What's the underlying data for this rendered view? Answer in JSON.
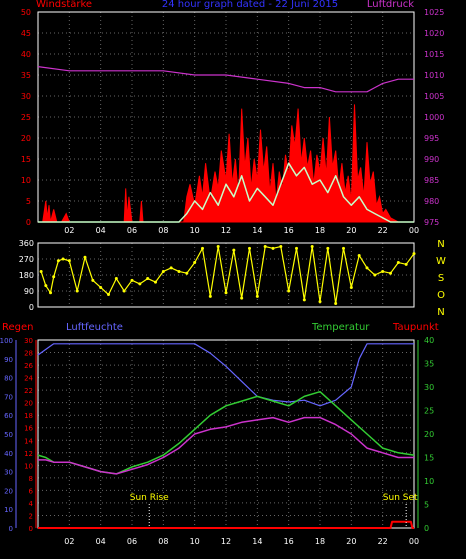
{
  "colors": {
    "background": "#000000",
    "frame": "#ffffff",
    "grid": "#666666",
    "wind_label": "#ff0000",
    "pressure": "#cc33cc",
    "title": "#3333ff",
    "wind_avg": "#c8ffc8",
    "direction": "#ffff00",
    "temperature": "#33cc33",
    "dewpoint": "#cc33cc",
    "humidity": "#6666ff",
    "rain": "#ff0000",
    "sun": "#ffffff"
  },
  "header": {
    "left": "Windstärke",
    "center": "24 hour graph dated - 22 Juni 2015",
    "right": "Luftdruck"
  },
  "direction_labels": [
    "N",
    "W",
    "S",
    "O",
    "N"
  ],
  "bottom_header": {
    "rain": "Regen",
    "humidity": "Luftfeuchte",
    "temperature": "Temperatur",
    "dewpoint": "Taupunkt"
  },
  "sun_labels": {
    "rise": "Sun Rise",
    "set": "Sun Set"
  },
  "chart_data": [
    {
      "type": "line",
      "title": "24 hour graph dated - 22 Juni 2015",
      "x_ticks": [
        "02",
        "04",
        "06",
        "08",
        "10",
        "12",
        "14",
        "16",
        "18",
        "20",
        "22",
        "00"
      ],
      "left_axis": {
        "label": "Windstärke",
        "ticks": [
          0,
          5,
          10,
          15,
          20,
          25,
          30,
          35,
          40,
          45,
          50
        ],
        "ylim": [
          0,
          50
        ]
      },
      "right_axis": {
        "label": "Luftdruck",
        "ticks": [
          975,
          980,
          985,
          990,
          995,
          1000,
          1005,
          1010,
          1015,
          1020,
          1025
        ],
        "ylim": [
          975,
          1025
        ]
      },
      "series": [
        {
          "name": "Windstärke gust",
          "axis": "left",
          "x": [
            0.3,
            0.5,
            0.6,
            0.7,
            0.8,
            1.0,
            1.2,
            1.5,
            1.8,
            2.0,
            3.0,
            5.5,
            5.6,
            5.7,
            5.8,
            6.0,
            6.5,
            6.6,
            6.7,
            7.0,
            7.5,
            8.0,
            8.5,
            9.0,
            9.3,
            9.5,
            9.7,
            10.0,
            10.3,
            10.5,
            10.7,
            11.0,
            11.3,
            11.5,
            11.7,
            12.0,
            12.2,
            12.4,
            12.6,
            12.8,
            13.0,
            13.2,
            13.4,
            13.6,
            13.8,
            14.0,
            14.2,
            14.4,
            14.6,
            14.8,
            15.0,
            15.2,
            15.4,
            15.6,
            15.8,
            16.0,
            16.2,
            16.4,
            16.6,
            16.8,
            17.0,
            17.2,
            17.4,
            17.6,
            17.8,
            18.0,
            18.2,
            18.4,
            18.6,
            18.8,
            19.0,
            19.2,
            19.4,
            19.6,
            19.8,
            20.0,
            20.2,
            20.4,
            20.6,
            20.8,
            21.0,
            21.2,
            21.4,
            21.6,
            21.8,
            22.0,
            22.2,
            22.5,
            23.0,
            24.0
          ],
          "values": [
            0,
            5,
            1,
            4,
            0,
            3,
            0,
            0,
            2,
            0,
            0,
            0,
            8,
            1,
            6,
            0,
            0,
            5,
            0,
            0,
            0,
            0,
            0,
            0,
            0,
            6,
            9,
            4,
            11,
            6,
            14,
            5,
            12,
            8,
            17,
            10,
            21,
            9,
            15,
            6,
            27,
            13,
            20,
            8,
            15,
            10,
            22,
            12,
            18,
            7,
            14,
            5,
            12,
            8,
            16,
            11,
            23,
            18,
            27,
            14,
            20,
            13,
            17,
            9,
            16,
            12,
            20,
            11,
            25,
            13,
            17,
            8,
            14,
            7,
            11,
            5,
            28,
            10,
            13,
            6,
            19,
            9,
            12,
            4,
            6,
            2,
            3,
            1,
            0,
            0
          ]
        },
        {
          "name": "Windstärke average",
          "axis": "left",
          "x": [
            0,
            8.5,
            9.0,
            9.5,
            10.0,
            10.5,
            11.0,
            11.5,
            12.0,
            12.5,
            13.0,
            13.5,
            14.0,
            14.5,
            15.0,
            15.5,
            16.0,
            16.5,
            17.0,
            17.5,
            18.0,
            18.5,
            19.0,
            19.5,
            20.0,
            20.5,
            21.0,
            21.5,
            22.0,
            22.5,
            23.0,
            24.0
          ],
          "values": [
            0,
            0,
            0,
            2,
            5,
            3,
            7,
            4,
            9,
            6,
            11,
            5,
            8,
            6,
            4,
            9,
            14,
            11,
            13,
            9,
            10,
            7,
            11,
            6,
            4,
            6,
            3,
            2,
            1,
            0,
            0,
            0
          ]
        },
        {
          "name": "Luftdruck",
          "axis": "right",
          "x": [
            0,
            2,
            4,
            6,
            8,
            10,
            12,
            14,
            16,
            17,
            18,
            19,
            20,
            21,
            21.5,
            22,
            23,
            24
          ],
          "values": [
            1012,
            1011,
            1011,
            1011,
            1011,
            1010,
            1010,
            1009,
            1008,
            1007,
            1007,
            1006,
            1006,
            1006,
            1007,
            1008,
            1009,
            1009
          ]
        }
      ]
    },
    {
      "type": "scatter",
      "x_ticks": [
        "02",
        "04",
        "06",
        "08",
        "10",
        "12",
        "14",
        "16",
        "18",
        "20",
        "22",
        "00"
      ],
      "left_axis": {
        "ticks": [
          0,
          90,
          180,
          270,
          360
        ],
        "ylim": [
          0,
          360
        ]
      },
      "right_axis": {
        "labels": [
          "N",
          "W",
          "S",
          "O",
          "N"
        ]
      },
      "series": [
        {
          "name": "Windrichtung",
          "x": [
            0.2,
            0.5,
            0.8,
            1.0,
            1.3,
            1.6,
            2.0,
            2.5,
            3.0,
            3.5,
            4.0,
            4.5,
            5.0,
            5.5,
            6.0,
            6.5,
            7.0,
            7.5,
            8.0,
            8.5,
            9.0,
            9.5,
            10.0,
            10.5,
            11.0,
            11.5,
            12.0,
            12.5,
            13.0,
            13.5,
            14.0,
            14.5,
            15.0,
            15.5,
            16.0,
            16.5,
            17.0,
            17.5,
            18.0,
            18.5,
            19.0,
            19.5,
            20.0,
            20.5,
            21.0,
            21.5,
            22.0,
            22.5,
            23.0,
            23.5,
            24.0
          ],
          "values": [
            200,
            120,
            80,
            170,
            260,
            270,
            260,
            90,
            280,
            150,
            110,
            70,
            160,
            90,
            150,
            130,
            160,
            140,
            200,
            220,
            200,
            190,
            250,
            330,
            60,
            340,
            80,
            320,
            50,
            330,
            60,
            340,
            330,
            340,
            90,
            330,
            40,
            340,
            30,
            330,
            20,
            330,
            110,
            290,
            220,
            180,
            200,
            190,
            250,
            240,
            300
          ]
        }
      ]
    },
    {
      "type": "line",
      "x_ticks": [
        "02",
        "04",
        "06",
        "08",
        "10",
        "12",
        "14",
        "16",
        "18",
        "20",
        "22",
        "00"
      ],
      "left_axis_rain": {
        "label": "Regen",
        "ticks": [
          0,
          2,
          4,
          6,
          8,
          10,
          12,
          14,
          16,
          18,
          20,
          22,
          24,
          26,
          28,
          30
        ],
        "ylim": [
          0,
          30
        ]
      },
      "left_axis_humidity": {
        "label": "Luftfeuchte",
        "ticks": [
          0,
          10,
          20,
          30,
          40,
          50,
          60,
          70,
          80,
          90,
          100
        ],
        "ylim": [
          0,
          100
        ]
      },
      "right_axis": {
        "ticks": [
          0,
          5,
          10,
          15,
          20,
          25,
          30,
          35,
          40
        ],
        "ylim": [
          0,
          40
        ]
      },
      "series": [
        {
          "name": "Luftfeuchte",
          "axis": "humidity",
          "x": [
            0,
            0.5,
            1.0,
            2.0,
            3.0,
            4.0,
            5.0,
            6.0,
            7.0,
            8.0,
            9.0,
            10.0,
            11.0,
            12.0,
            13.0,
            14.0,
            15.0,
            16.0,
            17.0,
            18.0,
            19.0,
            20.0,
            20.5,
            21.0,
            22.0,
            23.0,
            24.0
          ],
          "values": [
            92,
            95,
            98,
            98,
            98,
            98,
            98,
            98,
            98,
            98,
            98,
            98,
            93,
            86,
            78,
            70,
            68,
            67,
            68,
            65,
            68,
            75,
            90,
            98,
            98,
            98,
            98
          ]
        },
        {
          "name": "Temperatur",
          "axis": "temp",
          "x": [
            0,
            0.5,
            1.0,
            2.0,
            3.0,
            4.0,
            5.0,
            6.0,
            7.0,
            8.0,
            9.0,
            10.0,
            11.0,
            12.0,
            13.0,
            14.0,
            15.0,
            16.0,
            17.0,
            18.0,
            19.0,
            20.0,
            21.0,
            22.0,
            23.0,
            24.0
          ],
          "values": [
            15.5,
            15,
            14,
            14,
            13,
            12,
            11.5,
            13,
            14,
            15.5,
            18,
            21,
            24,
            26,
            27,
            28,
            27,
            26,
            28,
            29,
            26,
            23,
            20,
            17,
            16,
            15.5
          ]
        },
        {
          "name": "Taupunkt",
          "axis": "temp",
          "x": [
            0,
            0.5,
            1.0,
            2.0,
            3.0,
            4.0,
            5.0,
            6.0,
            7.0,
            8.0,
            9.0,
            10.0,
            11.0,
            12.0,
            13.0,
            14.0,
            15.0,
            16.0,
            17.0,
            18.0,
            19.0,
            20.0,
            21.0,
            22.0,
            23.0,
            24.0
          ],
          "values": [
            14.5,
            14.5,
            14,
            14,
            13,
            12,
            11.5,
            12.5,
            13.5,
            15,
            17,
            20,
            21,
            21.5,
            22.5,
            23,
            23.5,
            22.5,
            23.5,
            23.5,
            22,
            20,
            17,
            16,
            15,
            15
          ]
        },
        {
          "name": "Regen",
          "axis": "rain",
          "x": [
            0,
            22.5,
            22.6,
            23.8,
            23.9,
            24
          ],
          "values": [
            0,
            0,
            1,
            1,
            0,
            0
          ]
        }
      ],
      "sun_rise": 7.1,
      "sun_set": 23.5
    }
  ]
}
